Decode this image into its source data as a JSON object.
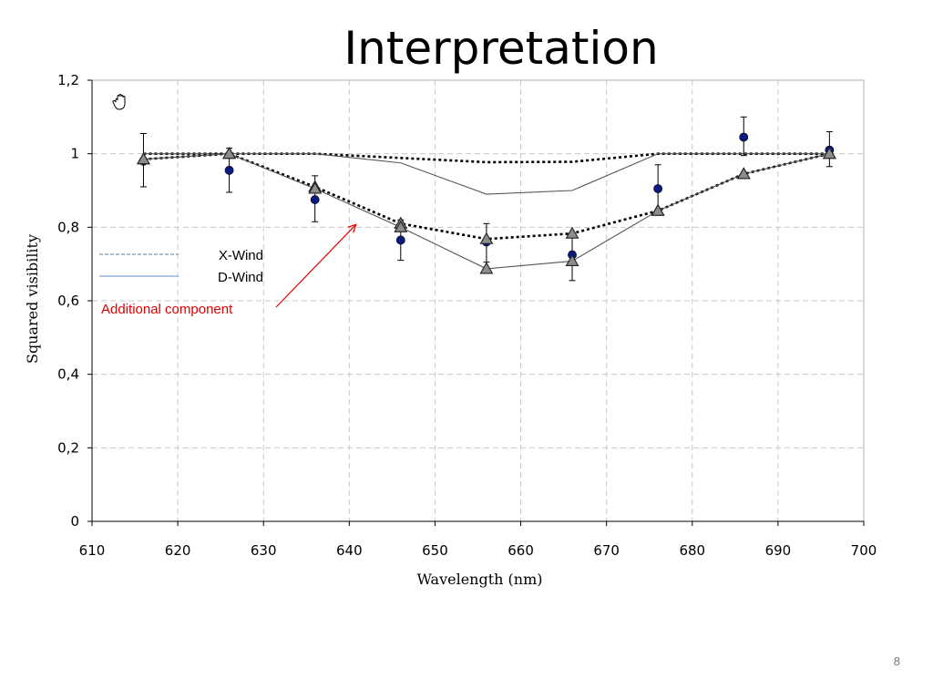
{
  "slide": {
    "title": "Interpretation",
    "page_number": "8"
  },
  "chart_data": {
    "type": "line",
    "title": "",
    "xlabel": "Wavelength (nm)",
    "ylabel": "Squared visibility",
    "xlim": [
      610,
      700
    ],
    "ylim": [
      0,
      1.2
    ],
    "x_ticks": [
      610,
      620,
      630,
      640,
      650,
      660,
      670,
      680,
      690,
      700
    ],
    "x_tick_labels": [
      "610",
      "620",
      "630",
      "640",
      "650",
      "660",
      "670",
      "680",
      "690",
      "700"
    ],
    "y_ticks": [
      0,
      0.2,
      0.4,
      0.6,
      0.8,
      1.0,
      1.2
    ],
    "y_tick_labels": [
      "0",
      "0,2",
      "0,4",
      "0,6",
      "0,8",
      "1",
      "1,2"
    ],
    "grid": true,
    "legend": {
      "placement": "left",
      "entries": [
        {
          "label": "X-Wind",
          "style": "dashed",
          "color": "#5b7fa8"
        },
        {
          "label": "D-Wind",
          "style": "solid",
          "color": "#5b8fd0"
        }
      ]
    },
    "annotation": {
      "text": "Additional component",
      "color": "#e00000",
      "points_to": [
        641,
        0.8
      ]
    },
    "observed": {
      "x": [
        616,
        626,
        636,
        646,
        656,
        666,
        676,
        686,
        696
      ],
      "y": [
        0.98,
        0.955,
        0.875,
        0.765,
        0.76,
        0.725,
        0.905,
        1.045,
        1.01
      ],
      "err_low": [
        0.91,
        0.895,
        0.815,
        0.71,
        0.705,
        0.655,
        0.84,
        0.995,
        0.965
      ],
      "err_high": [
        1.055,
        1.015,
        0.94,
        0.82,
        0.81,
        0.78,
        0.97,
        1.1,
        1.06
      ],
      "color": "#0a1a80"
    },
    "series": [
      {
        "style": "dotted-thick",
        "color": "#000000",
        "x": [
          616,
          626,
          636,
          656,
          666,
          676,
          686,
          696
        ],
        "y": [
          1.0,
          1.0,
          1.0,
          0.977,
          0.978,
          1.0,
          1.0,
          1.0
        ]
      },
      {
        "style": "solid-thin",
        "color": "#555555",
        "x": [
          616,
          626,
          636,
          646,
          656,
          666,
          676,
          686,
          696
        ],
        "y": [
          1.0,
          1.0,
          1.0,
          0.975,
          0.89,
          0.9,
          1.0,
          1.0,
          1.0
        ]
      },
      {
        "style": "dotted-thick",
        "color": "#000000",
        "markers": "triangle",
        "x": [
          616,
          626,
          636,
          646,
          656,
          666,
          676,
          686,
          696
        ],
        "y": [
          0.985,
          1.0,
          0.91,
          0.81,
          0.768,
          0.783,
          0.845,
          0.945,
          1.0
        ]
      },
      {
        "style": "solid-thin",
        "color": "#555555",
        "markers": "triangle",
        "x": [
          616,
          626,
          636,
          646,
          656,
          666,
          676,
          686,
          696
        ],
        "y": [
          0.985,
          1.0,
          0.905,
          0.8,
          0.687,
          0.708,
          0.845,
          0.945,
          1.0
        ]
      }
    ]
  }
}
